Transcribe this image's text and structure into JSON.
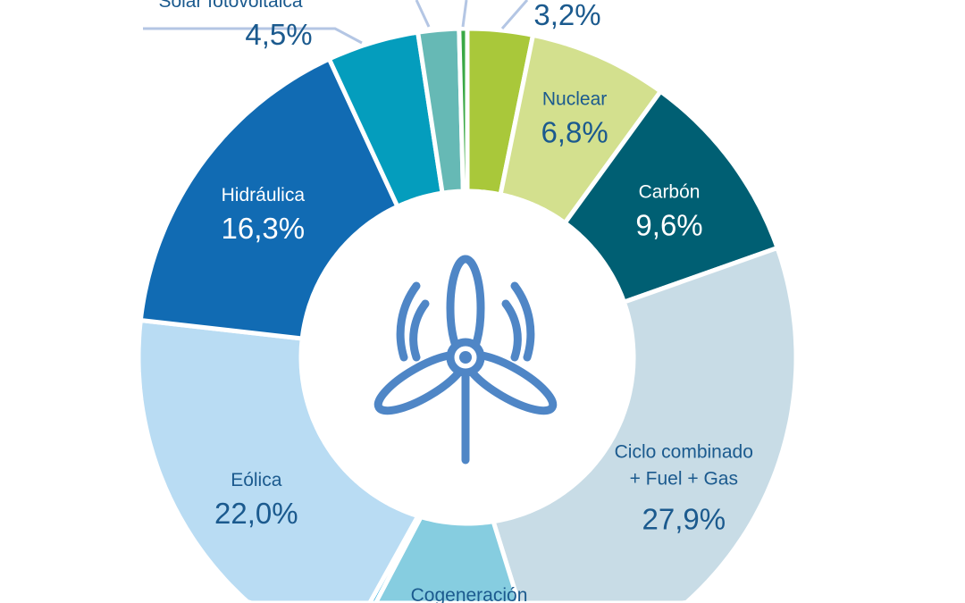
{
  "chart_data": {
    "type": "pie",
    "variant": "donut",
    "title": "",
    "unit": "%",
    "slices": [
      {
        "name": "",
        "value": 3.2,
        "value_label": "3,2%",
        "color": "#a9c83a",
        "label_outside": true
      },
      {
        "name": "Nuclear",
        "value": 6.8,
        "value_label": "6,8%",
        "color": "#d3e08e",
        "text_color": "#1b5a8e"
      },
      {
        "name": "Carbón",
        "value": 9.6,
        "value_label": "9,6%",
        "color": "#005f73",
        "text_color": "#ffffff"
      },
      {
        "name": "Ciclo combinado + Fuel + Gas",
        "name_lines": [
          "Ciclo combinado",
          "+ Fuel + Gas"
        ],
        "value": 27.9,
        "value_label": "27,9%",
        "color": "#c8dce6",
        "text_color": "#1b5a8e"
      },
      {
        "name": "Cogeneración",
        "value": 7.0,
        "value_label": "",
        "color": "#86cde0",
        "text_color": "#1b5a8e",
        "label_cropped": true
      },
      {
        "name": "",
        "value": 0.3,
        "value_label": "",
        "color": "#1aa6dd"
      },
      {
        "name": "Eólica",
        "value": 22.0,
        "value_label": "22,0%",
        "color": "#b9dcf3",
        "text_color": "#1b5a8e"
      },
      {
        "name": "Hidráulica",
        "value": 16.3,
        "value_label": "16,3%",
        "color": "#116bb3",
        "text_color": "#ffffff"
      },
      {
        "name": "Solar fotovoltaica",
        "value": 4.5,
        "value_label": "4,5%",
        "color": "#049dbd",
        "label_outside": true
      },
      {
        "name": "",
        "value": 2.0,
        "value_label": "",
        "color": "#66b9b5"
      },
      {
        "name": "",
        "value": 0.4,
        "value_label": "",
        "color": "#3aa845"
      }
    ],
    "center_icon": "wind-turbine-icon",
    "label_color": "#1b5a8e",
    "leader_color": "#b4c6e4",
    "icon_color": "#4f86c6"
  }
}
